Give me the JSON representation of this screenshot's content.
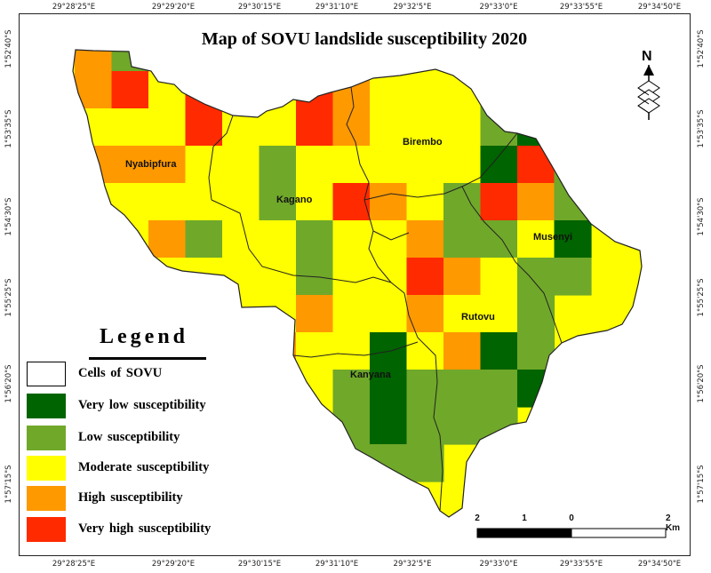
{
  "title": "Map of SOVU landslide susceptibility 2020",
  "axes": {
    "top": [
      "29°28'25\"E",
      "29°29'20\"E",
      "29°30'15\"E",
      "29°31'10\"E",
      "29°32'5\"E",
      "29°33'0\"E",
      "29°33'55\"E",
      "29°34'50\"E"
    ],
    "bottom": [
      "29°28'25\"E",
      "29°29'20\"E",
      "29°30'15\"E",
      "29°31'10\"E",
      "29°32'5\"E",
      "29°33'0\"E",
      "29°33'55\"E",
      "29°34'50\"E"
    ],
    "left": [
      "1°52'40\"S",
      "1°53'35\"S",
      "1°54'30\"S",
      "1°55'25\"S",
      "1°56'20\"S",
      "1°57'15\"S"
    ],
    "right": [
      "1°52'40\"S",
      "1°53'35\"S",
      "1°54'30\"S",
      "1°55'25\"S",
      "1°56'20\"S",
      "1°57'15\"S"
    ]
  },
  "regions": {
    "nyabipfura": "Nyabipfura",
    "birembo": "Birembo",
    "kagano": "Kagano",
    "musenyi": "Musenyi",
    "rutovu": "Rutovu",
    "kanyana": "Kanyana"
  },
  "legend": {
    "title": "Legend",
    "items": [
      {
        "label": "Cells of SOVU",
        "color": "#ffffff"
      },
      {
        "label": "Very  low  susceptibility",
        "color": "#006400"
      },
      {
        "label": "Low  susceptibility",
        "color": "#70a82a"
      },
      {
        "label": "Moderate  susceptibility",
        "color": "#ffff00"
      },
      {
        "label": "High  susceptibility",
        "color": "#ff9900"
      },
      {
        "label": "Very  high  susceptibility",
        "color": "#ff2a00"
      }
    ]
  },
  "scalebar": {
    "labels": [
      "2",
      "1",
      "0",
      "2 Km"
    ]
  },
  "north_arrow": "N",
  "colors": {
    "very_low": "#006400",
    "low": "#70a82a",
    "moderate": "#ffff00",
    "high": "#ff9900",
    "very_high": "#ff2a00"
  }
}
